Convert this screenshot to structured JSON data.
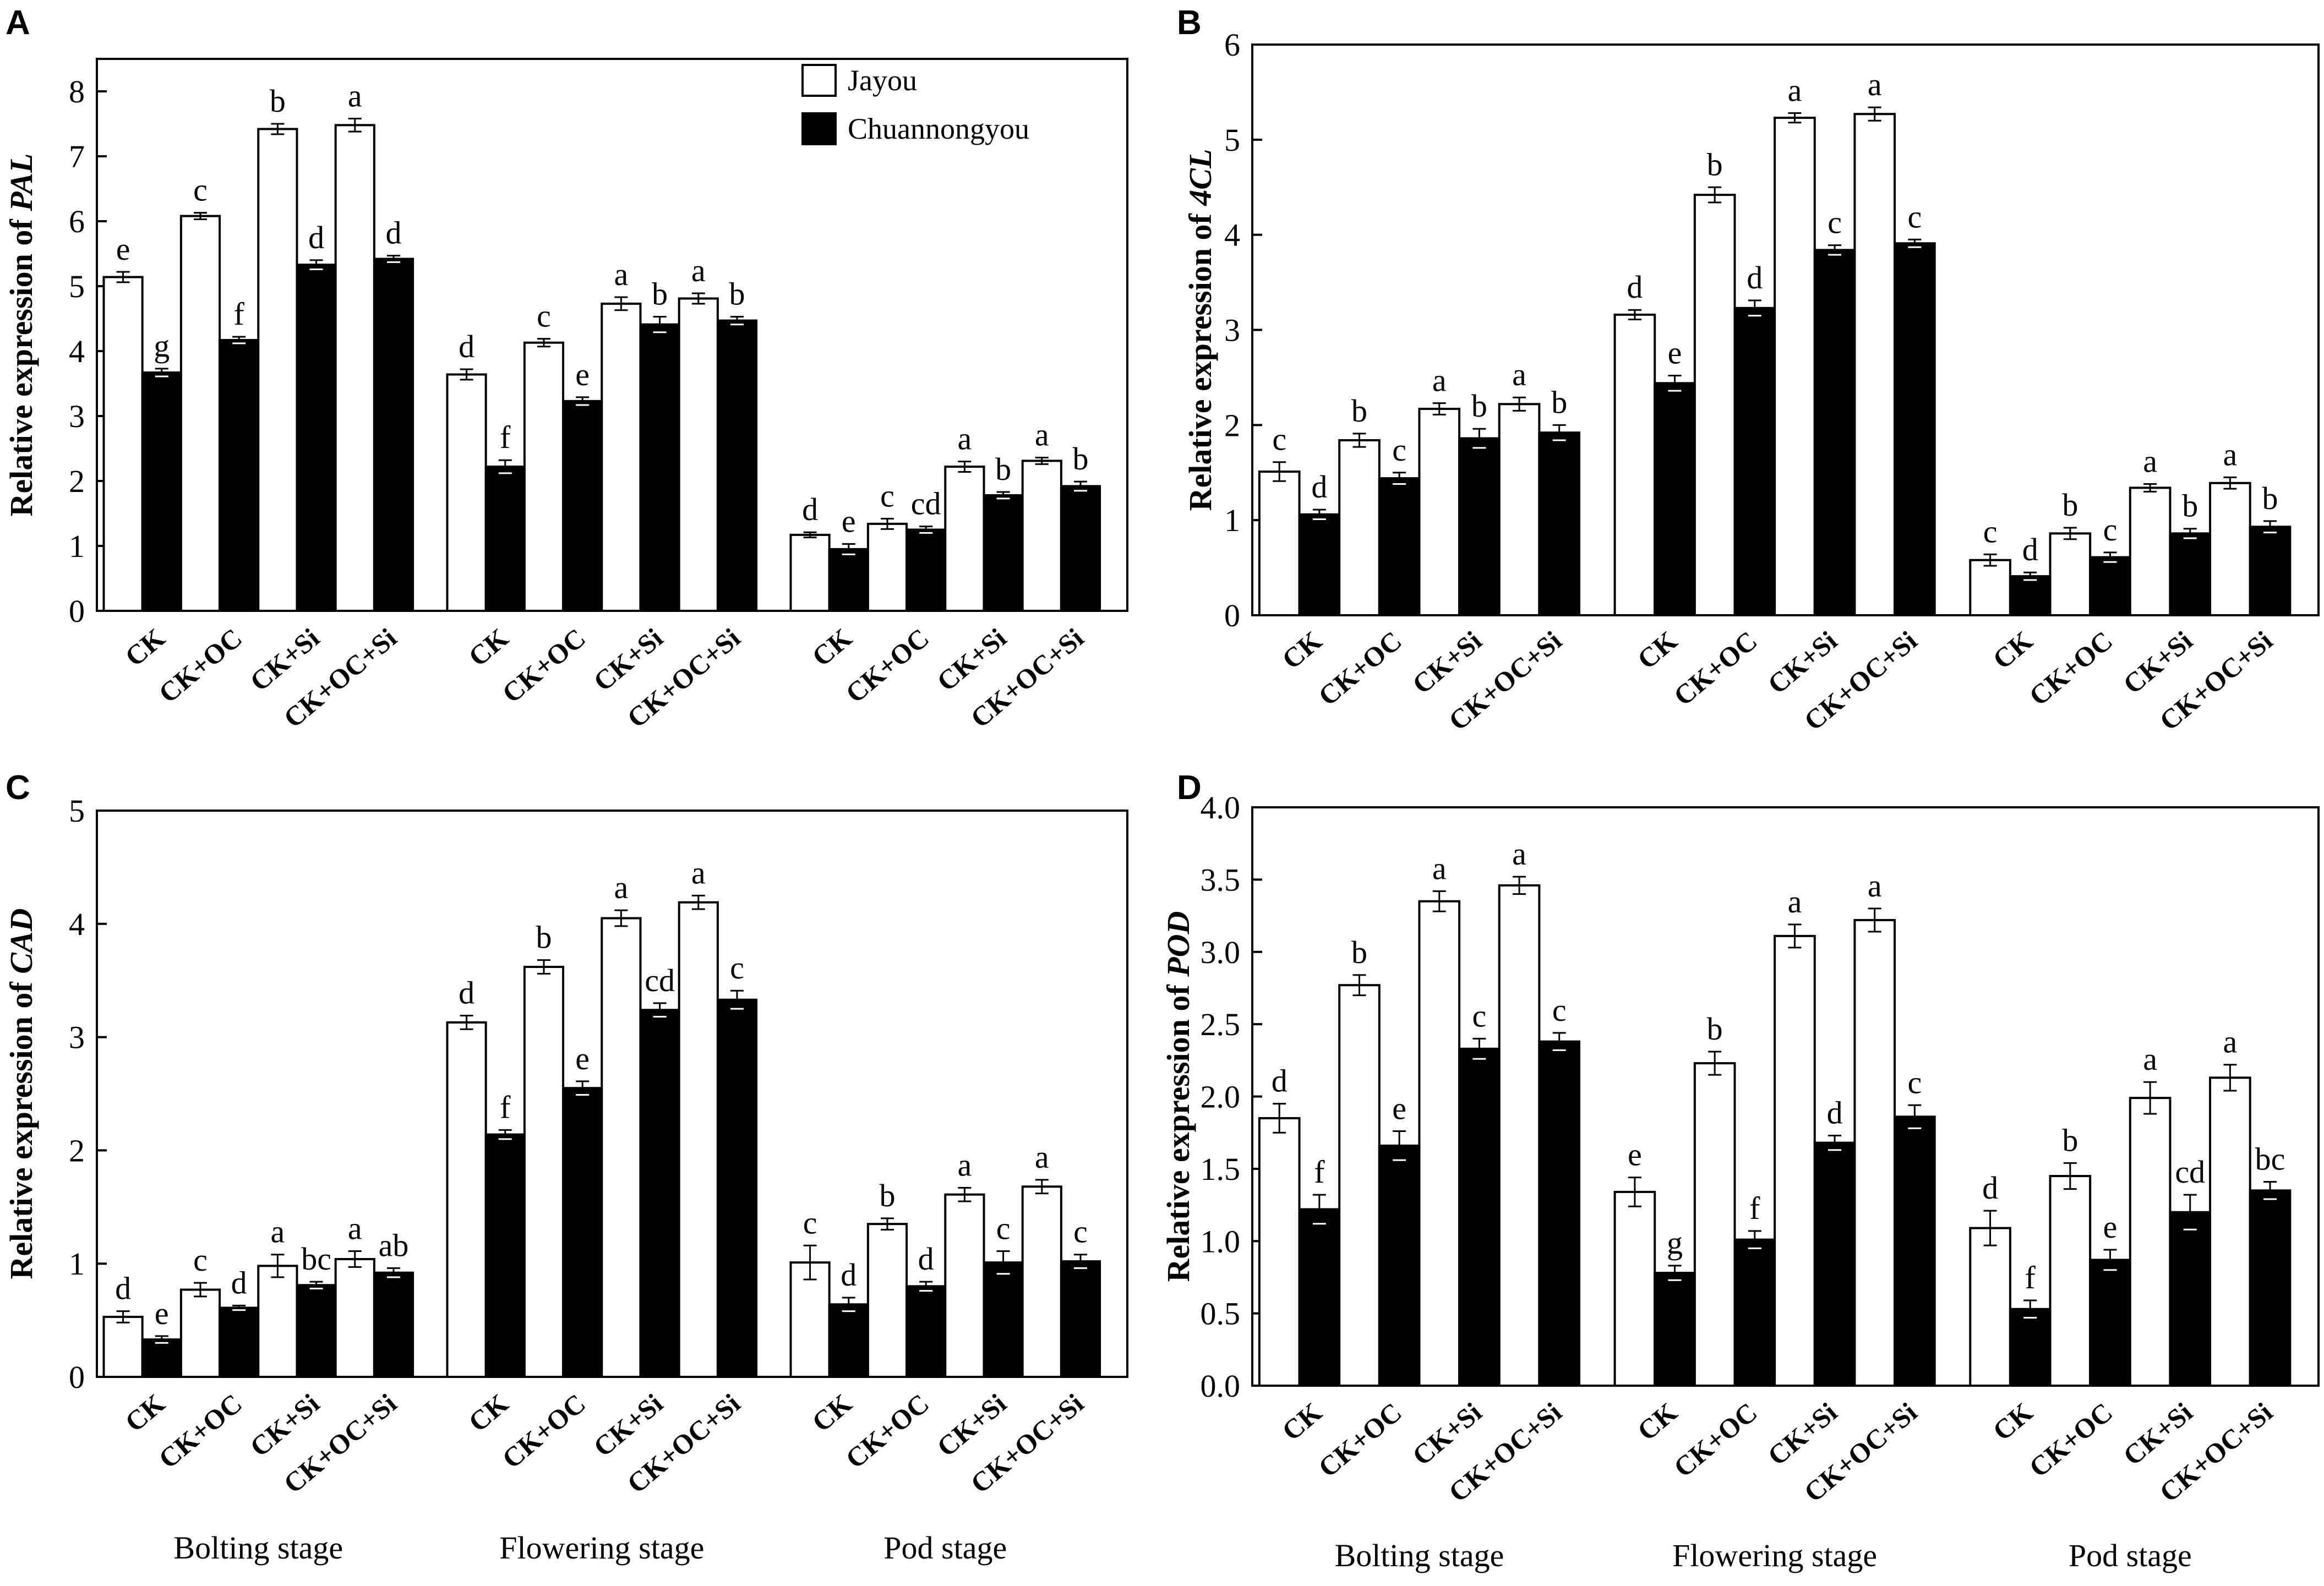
{
  "legend": {
    "series": [
      {
        "name": "Jayou",
        "fill": "#ffffff"
      },
      {
        "name": "Chuannongyou",
        "fill": "#000000"
      }
    ]
  },
  "stages": [
    "Bolting stage",
    "Flowering stage",
    "Pod stage"
  ],
  "treatments": [
    "CK",
    "CK+OC",
    "CK+Si",
    "CK+OC+Si"
  ],
  "chart_data": [
    {
      "panel": "A",
      "type": "bar",
      "ylabel_prefix": "Relative expression of ",
      "gene": "PAL",
      "ylim": [
        0,
        8.5
      ],
      "yticks": [
        "0",
        "1",
        "2",
        "3",
        "4",
        "5",
        "6",
        "7",
        "8"
      ],
      "ytick_values": [
        0,
        1,
        2,
        3,
        4,
        5,
        6,
        7,
        8
      ],
      "groups": [
        {
          "stage": "Bolting stage",
          "jayou": [
            5.14,
            6.08,
            7.42,
            7.48
          ],
          "jayou_err": [
            0.08,
            0.05,
            0.08,
            0.1
          ],
          "jayou_letters": [
            "e",
            "c",
            "b",
            "a"
          ],
          "chuan": [
            3.67,
            4.17,
            5.33,
            5.42
          ],
          "chuan_err": [
            0.06,
            0.05,
            0.07,
            0.05
          ],
          "chuan_letters": [
            "g",
            "f",
            "d",
            "d"
          ]
        },
        {
          "stage": "Flowering stage",
          "jayou": [
            3.64,
            4.13,
            4.73,
            4.81
          ],
          "jayou_err": [
            0.08,
            0.06,
            0.1,
            0.08
          ],
          "jayou_letters": [
            "d",
            "c",
            "a",
            "a"
          ],
          "chuan": [
            2.22,
            3.23,
            4.41,
            4.47
          ],
          "chuan_err": [
            0.1,
            0.06,
            0.12,
            0.06
          ],
          "chuan_letters": [
            "f",
            "e",
            "b",
            "b"
          ]
        },
        {
          "stage": "Pod stage",
          "jayou": [
            1.17,
            1.34,
            2.22,
            2.31
          ],
          "jayou_err": [
            0.04,
            0.08,
            0.08,
            0.05
          ],
          "jayou_letters": [
            "d",
            "c",
            "a",
            "a"
          ],
          "chuan": [
            0.95,
            1.25,
            1.78,
            1.92
          ],
          "chuan_err": [
            0.08,
            0.05,
            0.05,
            0.07
          ],
          "chuan_letters": [
            "e",
            "cd",
            "b",
            "b"
          ]
        }
      ]
    },
    {
      "panel": "B",
      "type": "bar",
      "ylabel_prefix": "Relative expression of ",
      "gene": "4CL",
      "ylim": [
        0,
        6
      ],
      "yticks": [
        "0",
        "1",
        "2",
        "3",
        "4",
        "5",
        "6"
      ],
      "ytick_values": [
        0,
        1,
        2,
        3,
        4,
        5,
        6
      ],
      "groups": [
        {
          "stage": "Bolting stage",
          "jayou": [
            1.51,
            1.84,
            2.17,
            2.22
          ],
          "jayou_err": [
            0.1,
            0.07,
            0.06,
            0.07
          ],
          "jayou_letters": [
            "c",
            "b",
            "a",
            "a"
          ],
          "chuan": [
            1.06,
            1.44,
            1.86,
            1.92
          ],
          "chuan_err": [
            0.05,
            0.06,
            0.1,
            0.08
          ],
          "chuan_letters": [
            "d",
            "c",
            "b",
            "b"
          ]
        },
        {
          "stage": "Flowering stage",
          "jayou": [
            3.16,
            4.42,
            5.23,
            5.27
          ],
          "jayou_err": [
            0.05,
            0.08,
            0.05,
            0.07
          ],
          "jayou_letters": [
            "d",
            "b",
            "a",
            "a"
          ],
          "chuan": [
            2.44,
            3.23,
            3.84,
            3.91
          ],
          "chuan_err": [
            0.08,
            0.08,
            0.05,
            0.04
          ],
          "chuan_letters": [
            "e",
            "d",
            "c",
            "c"
          ]
        },
        {
          "stage": "Pod stage",
          "jayou": [
            0.58,
            0.86,
            1.34,
            1.39
          ],
          "jayou_err": [
            0.06,
            0.06,
            0.04,
            0.06
          ],
          "jayou_letters": [
            "c",
            "b",
            "a",
            "a"
          ],
          "chuan": [
            0.41,
            0.61,
            0.86,
            0.93
          ],
          "chuan_err": [
            0.04,
            0.05,
            0.05,
            0.06
          ],
          "chuan_letters": [
            "d",
            "c",
            "b",
            "b"
          ]
        }
      ]
    },
    {
      "panel": "C",
      "type": "bar",
      "ylabel_prefix": "Relative expression of ",
      "gene": "CAD",
      "ylim": [
        0,
        5
      ],
      "yticks": [
        "0",
        "1",
        "2",
        "3",
        "4",
        "5"
      ],
      "ytick_values": [
        0,
        1,
        2,
        3,
        4,
        5
      ],
      "groups": [
        {
          "stage": "Bolting stage",
          "jayou": [
            0.53,
            0.77,
            0.98,
            1.04
          ],
          "jayou_err": [
            0.05,
            0.06,
            0.1,
            0.07
          ],
          "jayou_letters": [
            "d",
            "c",
            "a",
            "a"
          ],
          "chuan": [
            0.33,
            0.61,
            0.81,
            0.92
          ],
          "chuan_err": [
            0.03,
            0.02,
            0.03,
            0.04
          ],
          "chuan_letters": [
            "e",
            "d",
            "bc",
            "ab"
          ]
        },
        {
          "stage": "Flowering stage",
          "jayou": [
            3.13,
            3.62,
            4.05,
            4.19
          ],
          "jayou_err": [
            0.06,
            0.06,
            0.07,
            0.06
          ],
          "jayou_letters": [
            "d",
            "b",
            "a",
            "a"
          ],
          "chuan": [
            2.14,
            2.55,
            3.24,
            3.33
          ],
          "chuan_err": [
            0.04,
            0.06,
            0.06,
            0.08
          ],
          "chuan_letters": [
            "f",
            "e",
            "cd",
            "c"
          ]
        },
        {
          "stage": "Pod stage",
          "jayou": [
            1.01,
            1.35,
            1.61,
            1.68
          ],
          "jayou_err": [
            0.15,
            0.05,
            0.06,
            0.06
          ],
          "jayou_letters": [
            "c",
            "b",
            "a",
            "a"
          ],
          "chuan": [
            0.64,
            0.8,
            1.01,
            1.02
          ],
          "chuan_err": [
            0.06,
            0.04,
            0.1,
            0.06
          ],
          "chuan_letters": [
            "d",
            "d",
            "c",
            "c"
          ]
        }
      ]
    },
    {
      "panel": "D",
      "type": "bar",
      "ylabel_prefix": "Relative expression of ",
      "gene": "POD",
      "ylim": [
        0,
        4.0
      ],
      "yticks": [
        "0.0",
        "0.5",
        "1.0",
        "1.5",
        "2.0",
        "2.5",
        "3.0",
        "3.5",
        "4.0"
      ],
      "ytick_values": [
        0,
        0.5,
        1.0,
        1.5,
        2.0,
        2.5,
        3.0,
        3.5,
        4.0
      ],
      "groups": [
        {
          "stage": "Bolting stage",
          "jayou": [
            1.85,
            2.77,
            3.35,
            3.46
          ],
          "jayou_err": [
            0.1,
            0.07,
            0.07,
            0.06
          ],
          "jayou_letters": [
            "d",
            "b",
            "a",
            "a"
          ],
          "chuan": [
            1.22,
            1.66,
            2.33,
            2.38
          ],
          "chuan_err": [
            0.1,
            0.1,
            0.07,
            0.06
          ],
          "chuan_letters": [
            "f",
            "e",
            "c",
            "c"
          ]
        },
        {
          "stage": "Flowering stage",
          "jayou": [
            1.34,
            2.23,
            3.11,
            3.22
          ],
          "jayou_err": [
            0.1,
            0.08,
            0.08,
            0.08
          ],
          "jayou_letters": [
            "e",
            "b",
            "a",
            "a"
          ],
          "chuan": [
            0.78,
            1.01,
            1.68,
            1.86
          ],
          "chuan_err": [
            0.05,
            0.06,
            0.05,
            0.08
          ],
          "chuan_letters": [
            "g",
            "f",
            "d",
            "c"
          ]
        },
        {
          "stage": "Pod stage",
          "jayou": [
            1.09,
            1.45,
            1.99,
            2.13
          ],
          "jayou_err": [
            0.12,
            0.09,
            0.11,
            0.09
          ],
          "jayou_letters": [
            "d",
            "b",
            "a",
            "a"
          ],
          "chuan": [
            0.53,
            0.87,
            1.2,
            1.35
          ],
          "chuan_err": [
            0.06,
            0.07,
            0.12,
            0.06
          ],
          "chuan_letters": [
            "f",
            "e",
            "cd",
            "bc"
          ]
        }
      ]
    }
  ]
}
